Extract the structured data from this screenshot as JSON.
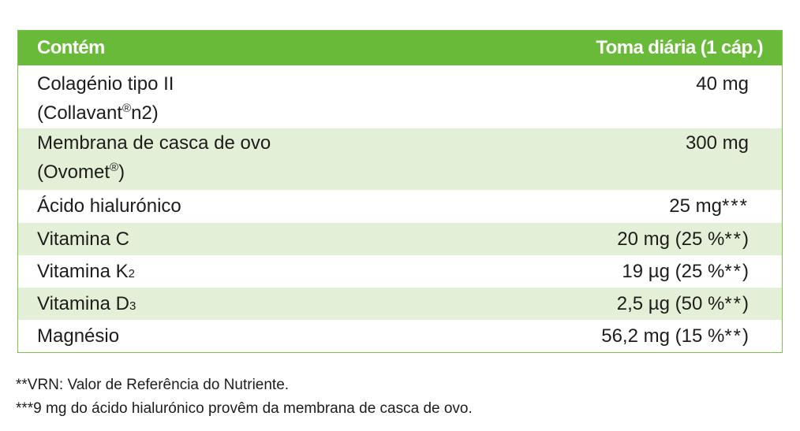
{
  "table": {
    "header": {
      "left": "Contém",
      "right": "Toma diária (1 cáp.)"
    },
    "rows": [
      {
        "name_line1": "Colagénio tipo II",
        "name_line2_pre": "(Collavant",
        "name_line2_sup": "®",
        "name_line2_post": "n2)",
        "value": "40 mg"
      },
      {
        "name_line1": "Membrana de casca de ovo",
        "name_line2_pre": "(Ovomet",
        "name_line2_sup": "®",
        "name_line2_post": ")",
        "value": "300 mg"
      },
      {
        "name": "Ácido hialurónico",
        "value": "25 mg",
        "value_suffix": "***"
      },
      {
        "name": "Vitamina C",
        "value": "20 mg (25 %",
        "value_suffix": "**",
        "value_close": ")"
      },
      {
        "name": "Vitamina K",
        "name_sub": "2",
        "value": "19 µg (25 %",
        "value_suffix": "**",
        "value_close": ")"
      },
      {
        "name": "Vitamina D",
        "name_sub": "3",
        "value": "2,5 µg (50 %",
        "value_suffix": "**",
        "value_close": ")"
      },
      {
        "name": "Magnésio",
        "value": "56,2 mg (15 %",
        "value_suffix": "**",
        "value_close": ")"
      }
    ]
  },
  "footnotes": {
    "vrn": "**VRN: Valor de Referência do Nutriente.",
    "hyaluronic": "***9 mg do ácido hialurónico provêm da membrana de casca de ovo."
  },
  "colors": {
    "header_green": "#6aba3a",
    "border_green": "#7dc04b",
    "alt_row": "#e4efd8",
    "text": "#1d1d1b"
  }
}
